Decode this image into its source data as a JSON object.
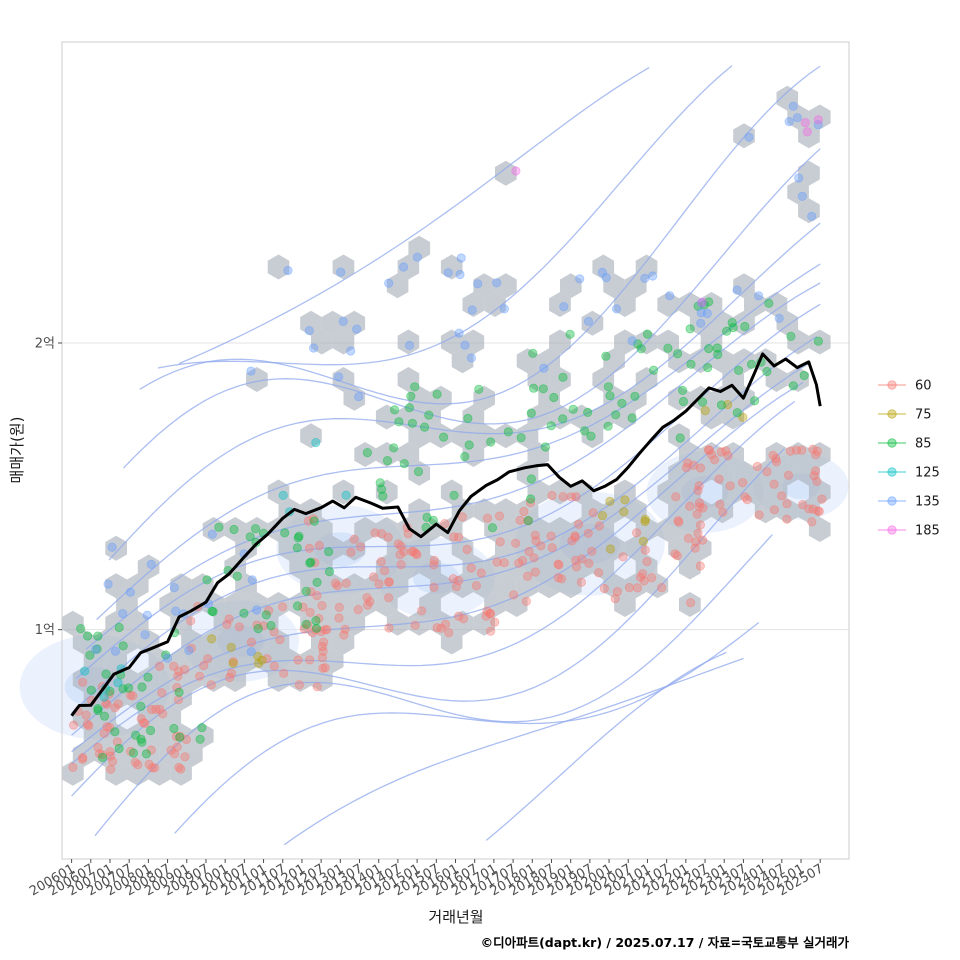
{
  "chart_data": {
    "type": "scatter",
    "xlabel": "거래년월",
    "ylabel": "매매가(원)",
    "caption": "©디아파트(dapt.kr) / 2025.07.17 / 자료=국토교통부 실거래가",
    "x_range": [
      2005.75,
      2026.25
    ],
    "y_range": [
      2000,
      30500
    ],
    "x_ticks": [
      {
        "label": "200601",
        "value": 2006.0
      },
      {
        "label": "200607",
        "value": 2006.5
      },
      {
        "label": "200701",
        "value": 2007.0
      },
      {
        "label": "200707",
        "value": 2007.5
      },
      {
        "label": "200801",
        "value": 2008.0
      },
      {
        "label": "200807",
        "value": 2008.5
      },
      {
        "label": "200901",
        "value": 2009.0
      },
      {
        "label": "200907",
        "value": 2009.5
      },
      {
        "label": "201001",
        "value": 2010.0
      },
      {
        "label": "201007",
        "value": 2010.5
      },
      {
        "label": "201101",
        "value": 2011.0
      },
      {
        "label": "201107",
        "value": 2011.5
      },
      {
        "label": "201201",
        "value": 2012.0
      },
      {
        "label": "201207",
        "value": 2012.5
      },
      {
        "label": "201301",
        "value": 2013.0
      },
      {
        "label": "201307",
        "value": 2013.5
      },
      {
        "label": "201401",
        "value": 2014.0
      },
      {
        "label": "201407",
        "value": 2014.5
      },
      {
        "label": "201501",
        "value": 2015.0
      },
      {
        "label": "201507",
        "value": 2015.5
      },
      {
        "label": "201601",
        "value": 2016.0
      },
      {
        "label": "201607",
        "value": 2016.5
      },
      {
        "label": "201701",
        "value": 2017.0
      },
      {
        "label": "201707",
        "value": 2017.5
      },
      {
        "label": "201801",
        "value": 2018.0
      },
      {
        "label": "201807",
        "value": 2018.5
      },
      {
        "label": "201901",
        "value": 2019.0
      },
      {
        "label": "201907",
        "value": 2019.5
      },
      {
        "label": "202001",
        "value": 2020.0
      },
      {
        "label": "202007",
        "value": 2020.5
      },
      {
        "label": "202101",
        "value": 2021.0
      },
      {
        "label": "202107",
        "value": 2021.5
      },
      {
        "label": "202201",
        "value": 2022.0
      },
      {
        "label": "202207",
        "value": 2022.5
      },
      {
        "label": "202301",
        "value": 2023.0
      },
      {
        "label": "202307",
        "value": 2023.5
      },
      {
        "label": "202401",
        "value": 2024.0
      },
      {
        "label": "202407",
        "value": 2024.5
      },
      {
        "label": "202501",
        "value": 2025.0
      },
      {
        "label": "202507",
        "value": 2025.5
      }
    ],
    "y_ticks": [
      {
        "label": "1억",
        "value": 10000
      },
      {
        "label": "2억",
        "value": 20000
      }
    ],
    "legend": {
      "placement": "right",
      "entries": [
        {
          "label": "60",
          "color": "#F8766D"
        },
        {
          "label": "75",
          "color": "#B79F00"
        },
        {
          "label": "85",
          "color": "#00BA38"
        },
        {
          "label": "125",
          "color": "#00BFC4"
        },
        {
          "label": "135",
          "color": "#619CFF"
        },
        {
          "label": "185",
          "color": "#F564E3"
        }
      ]
    },
    "trend_line": {
      "name": "moving average",
      "color": "#000000",
      "points": [
        [
          2006.0,
          7000
        ],
        [
          2006.2,
          7300
        ],
        [
          2006.5,
          7400
        ],
        [
          2006.8,
          7900
        ],
        [
          2007.1,
          8400
        ],
        [
          2007.5,
          8700
        ],
        [
          2007.8,
          9200
        ],
        [
          2008.1,
          9400
        ],
        [
          2008.5,
          9600
        ],
        [
          2008.8,
          10400
        ],
        [
          2009.1,
          10600
        ],
        [
          2009.5,
          11000
        ],
        [
          2009.8,
          11600
        ],
        [
          2010.1,
          12000
        ],
        [
          2010.5,
          12500
        ],
        [
          2010.8,
          13000
        ],
        [
          2011.1,
          13300
        ],
        [
          2011.5,
          13900
        ],
        [
          2011.8,
          14200
        ],
        [
          2012.1,
          14000
        ],
        [
          2012.5,
          14200
        ],
        [
          2012.8,
          14500
        ],
        [
          2013.1,
          14300
        ],
        [
          2013.4,
          14600
        ],
        [
          2013.8,
          14400
        ],
        [
          2014.1,
          14200
        ],
        [
          2014.5,
          14300
        ],
        [
          2014.8,
          13500
        ],
        [
          2015.1,
          13200
        ],
        [
          2015.5,
          13700
        ],
        [
          2015.8,
          13400
        ],
        [
          2016.1,
          14200
        ],
        [
          2016.4,
          14600
        ],
        [
          2016.8,
          15000
        ],
        [
          2017.1,
          15200
        ],
        [
          2017.4,
          15500
        ],
        [
          2017.8,
          15600
        ],
        [
          2018.1,
          15700
        ],
        [
          2018.4,
          15800
        ],
        [
          2018.7,
          15300
        ],
        [
          2019.0,
          15000
        ],
        [
          2019.3,
          15200
        ],
        [
          2019.6,
          14900
        ],
        [
          2019.9,
          15000
        ],
        [
          2020.2,
          15200
        ],
        [
          2020.5,
          15700
        ],
        [
          2020.8,
          16200
        ],
        [
          2021.1,
          16600
        ],
        [
          2021.4,
          17000
        ],
        [
          2021.7,
          17300
        ],
        [
          2022.0,
          17600
        ],
        [
          2022.3,
          18000
        ],
        [
          2022.6,
          18400
        ],
        [
          2022.9,
          18300
        ],
        [
          2023.2,
          18500
        ],
        [
          2023.5,
          18100
        ],
        [
          2023.8,
          19000
        ],
        [
          2024.0,
          19600
        ],
        [
          2024.3,
          19200
        ],
        [
          2024.6,
          19400
        ],
        [
          2024.9,
          19100
        ],
        [
          2025.2,
          19300
        ],
        [
          2025.4,
          18500
        ],
        [
          2025.5,
          17800
        ]
      ]
    },
    "density_centers": [
      {
        "x": 2006.6,
        "y": 8000,
        "weight": 1.0
      },
      {
        "x": 2010.4,
        "y": 9600,
        "weight": 0.7
      },
      {
        "x": 2013.0,
        "y": 12800,
        "weight": 0.8
      },
      {
        "x": 2015.5,
        "y": 11800,
        "weight": 0.7
      },
      {
        "x": 2019.5,
        "y": 13000,
        "weight": 1.0
      },
      {
        "x": 2022.5,
        "y": 14800,
        "weight": 0.7
      },
      {
        "x": 2025.0,
        "y": 15000,
        "weight": 0.5
      }
    ],
    "point_groups": [
      {
        "series": "60",
        "x_range": [
          2006.0,
          2009.0
        ],
        "y_range": [
          5000,
          8800
        ],
        "count": 60
      },
      {
        "series": "60",
        "x_range": [
          2009.0,
          2013.0
        ],
        "y_range": [
          8000,
          11000
        ],
        "count": 40
      },
      {
        "series": "60",
        "x_range": [
          2012.0,
          2017.5
        ],
        "y_range": [
          9800,
          14000
        ],
        "count": 80
      },
      {
        "series": "60",
        "x_range": [
          2017.5,
          2022.5
        ],
        "y_range": [
          10800,
          14800
        ],
        "count": 70
      },
      {
        "series": "60",
        "x_range": [
          2022.0,
          2025.6
        ],
        "y_range": [
          13500,
          16500
        ],
        "count": 50
      },
      {
        "series": "75",
        "x_range": [
          2009.5,
          2011.5
        ],
        "y_range": [
          8400,
          10000
        ],
        "count": 6
      },
      {
        "series": "75",
        "x_range": [
          2019.5,
          2021.0
        ],
        "y_range": [
          12800,
          14600
        ],
        "count": 8
      },
      {
        "series": "75",
        "x_range": [
          2022.5,
          2023.5
        ],
        "y_range": [
          17200,
          18200
        ],
        "count": 3
      },
      {
        "series": "85",
        "x_range": [
          2006.0,
          2009.5
        ],
        "y_range": [
          5500,
          10500
        ],
        "count": 35
      },
      {
        "series": "85",
        "x_range": [
          2009.5,
          2013.0
        ],
        "y_range": [
          10000,
          14000
        ],
        "count": 30
      },
      {
        "series": "85",
        "x_range": [
          2013.0,
          2018.5
        ],
        "y_range": [
          13500,
          18500
        ],
        "count": 35
      },
      {
        "series": "85",
        "x_range": [
          2018.0,
          2022.5
        ],
        "y_range": [
          16500,
          20500
        ],
        "count": 30
      },
      {
        "series": "85",
        "x_range": [
          2022.0,
          2025.5
        ],
        "y_range": [
          17500,
          21500
        ],
        "count": 25
      },
      {
        "series": "125",
        "x_range": [
          2006.0,
          2007.5
        ],
        "y_range": [
          7000,
          9500
        ],
        "count": 5
      },
      {
        "series": "125",
        "x_range": [
          2010.0,
          2013.5
        ],
        "y_range": [
          14000,
          17500
        ],
        "count": 4
      },
      {
        "series": "135",
        "x_range": [
          2006.0,
          2011.0
        ],
        "y_range": [
          9000,
          14000
        ],
        "count": 20
      },
      {
        "series": "135",
        "x_range": [
          2010.5,
          2016.5
        ],
        "y_range": [
          18000,
          23000
        ],
        "count": 18
      },
      {
        "series": "135",
        "x_range": [
          2016.0,
          2021.5
        ],
        "y_range": [
          19000,
          22500
        ],
        "count": 16
      },
      {
        "series": "135",
        "x_range": [
          2021.5,
          2025.5
        ],
        "y_range": [
          20500,
          28500
        ],
        "count": 16
      },
      {
        "series": "185",
        "x_range": [
          2017.5,
          2017.6
        ],
        "y_range": [
          26000,
          26200
        ],
        "count": 1
      },
      {
        "series": "185",
        "x_range": [
          2022.4,
          2022.5
        ],
        "y_range": [
          21400,
          21500
        ],
        "count": 1
      },
      {
        "series": "185",
        "x_range": [
          2024.8,
          2025.6
        ],
        "y_range": [
          27000,
          27800
        ],
        "count": 3
      }
    ]
  }
}
